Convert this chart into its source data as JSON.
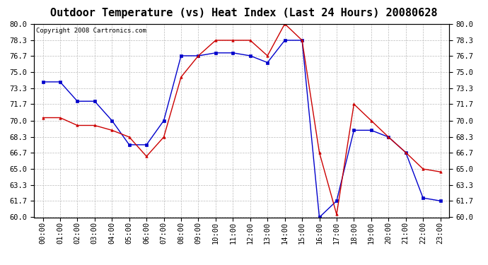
{
  "title": "Outdoor Temperature (vs) Heat Index (Last 24 Hours) 20080628",
  "copyright": "Copyright 2008 Cartronics.com",
  "hours": [
    "00:00",
    "01:00",
    "02:00",
    "03:00",
    "04:00",
    "05:00",
    "06:00",
    "07:00",
    "08:00",
    "09:00",
    "10:00",
    "11:00",
    "12:00",
    "13:00",
    "14:00",
    "15:00",
    "16:00",
    "17:00",
    "18:00",
    "19:00",
    "20:00",
    "21:00",
    "22:00",
    "23:00"
  ],
  "temp_blue": [
    74.0,
    74.0,
    72.0,
    72.0,
    70.0,
    67.5,
    67.5,
    70.0,
    76.7,
    76.7,
    77.0,
    77.0,
    76.7,
    76.0,
    78.3,
    78.3,
    60.0,
    61.7,
    69.0,
    69.0,
    68.3,
    66.7,
    62.0,
    61.7
  ],
  "heat_red": [
    70.3,
    70.3,
    69.5,
    69.5,
    69.0,
    68.3,
    66.3,
    68.3,
    74.5,
    76.7,
    78.3,
    78.3,
    78.3,
    76.7,
    80.0,
    78.3,
    66.7,
    60.3,
    71.7,
    70.0,
    68.3,
    66.7,
    65.0,
    64.7
  ],
  "ylim": [
    60.0,
    80.0
  ],
  "yticks": [
    60.0,
    61.7,
    63.3,
    65.0,
    66.7,
    68.3,
    70.0,
    71.7,
    73.3,
    75.0,
    76.7,
    78.3,
    80.0
  ],
  "blue_color": "#0000cc",
  "red_color": "#cc0000",
  "bg_color": "#ffffff",
  "grid_color": "#bbbbbb",
  "title_fontsize": 11,
  "copyright_fontsize": 6.5,
  "tick_fontsize": 7.5
}
